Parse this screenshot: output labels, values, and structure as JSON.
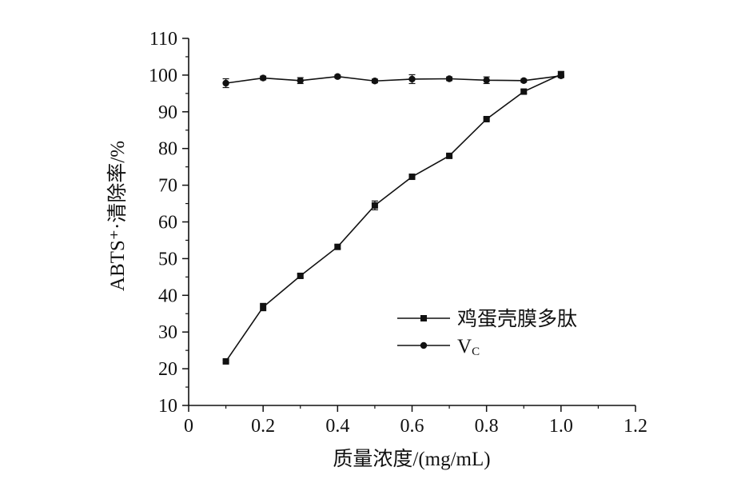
{
  "chart_data": {
    "type": "line",
    "title": "",
    "xlabel": "质量浓度/(mg/mL)",
    "ylabel": "ABTS⁺·清除率/%",
    "xlim": [
      0,
      1.2
    ],
    "ylim": [
      10,
      110
    ],
    "x_ticks": [
      "0",
      "0.2",
      "0.4",
      "0.6",
      "0.8",
      "1.0",
      "1.2"
    ],
    "y_ticks": [
      "10",
      "20",
      "30",
      "40",
      "50",
      "60",
      "70",
      "80",
      "90",
      "100",
      "110"
    ],
    "x_tick_values": [
      0,
      0.2,
      0.4,
      0.6,
      0.8,
      1.0,
      1.2
    ],
    "y_tick_values": [
      10,
      20,
      30,
      40,
      50,
      60,
      70,
      80,
      90,
      100,
      110
    ],
    "grid": false,
    "legend_position": "center-right",
    "x": [
      0.1,
      0.2,
      0.3,
      0.4,
      0.5,
      0.6,
      0.7,
      0.8,
      0.9,
      1.0
    ],
    "series": [
      {
        "name": "鸡蛋壳膜多肽",
        "marker": "square",
        "values": [
          22,
          36.8,
          45.3,
          53.2,
          64.5,
          72.3,
          78,
          88,
          95.5,
          100.2
        ],
        "errors": [
          0.3,
          1.0,
          0.5,
          0.5,
          1.2,
          0.5,
          0.4,
          0.3,
          0.5,
          0.8
        ]
      },
      {
        "name": "Vc",
        "name_main": "V",
        "name_sub": "C",
        "marker": "circle",
        "values": [
          97.8,
          99.2,
          98.5,
          99.6,
          98.4,
          98.9,
          99,
          98.6,
          98.5,
          99.8
        ],
        "errors": [
          1.2,
          0.5,
          0.8,
          0.4,
          0.5,
          1.2,
          0.5,
          0.9,
          0.4,
          0.5
        ]
      }
    ],
    "colors": {
      "line": "#111111",
      "axis": "#111111"
    }
  }
}
